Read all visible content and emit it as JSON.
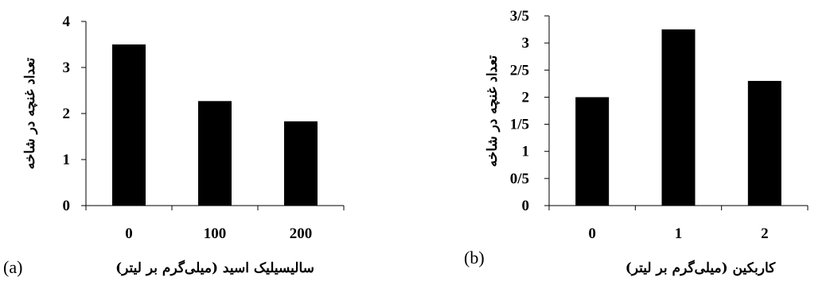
{
  "chart_data": [
    {
      "type": "bar",
      "panel_label": "(a)",
      "categories": [
        "0",
        "100",
        "200"
      ],
      "values": [
        3.5,
        2.27,
        1.83
      ],
      "title": "",
      "xlabel": "سالیسیلیک اسید (میلی‌گرم بر لیتر)",
      "ylabel": "تعداد غنچه در شاخه",
      "ylim": [
        0,
        4
      ],
      "yticks": [
        "0",
        "1",
        "2",
        "3",
        "4"
      ],
      "bar_color": "#000000",
      "grid": false
    },
    {
      "type": "bar",
      "panel_label": "(b)",
      "categories": [
        "0",
        "1",
        "2"
      ],
      "values": [
        2.0,
        3.25,
        2.3
      ],
      "title": "",
      "xlabel": "کاربکین (میلی‌گرم بر لیتر)",
      "ylabel": "تعداد غنچه در شاخه",
      "ylim": [
        0,
        3.5
      ],
      "yticks": [
        "0",
        "0/5",
        "1",
        "1/5",
        "2",
        "2/5",
        "3",
        "3/5"
      ],
      "bar_color": "#000000",
      "grid": false
    }
  ]
}
